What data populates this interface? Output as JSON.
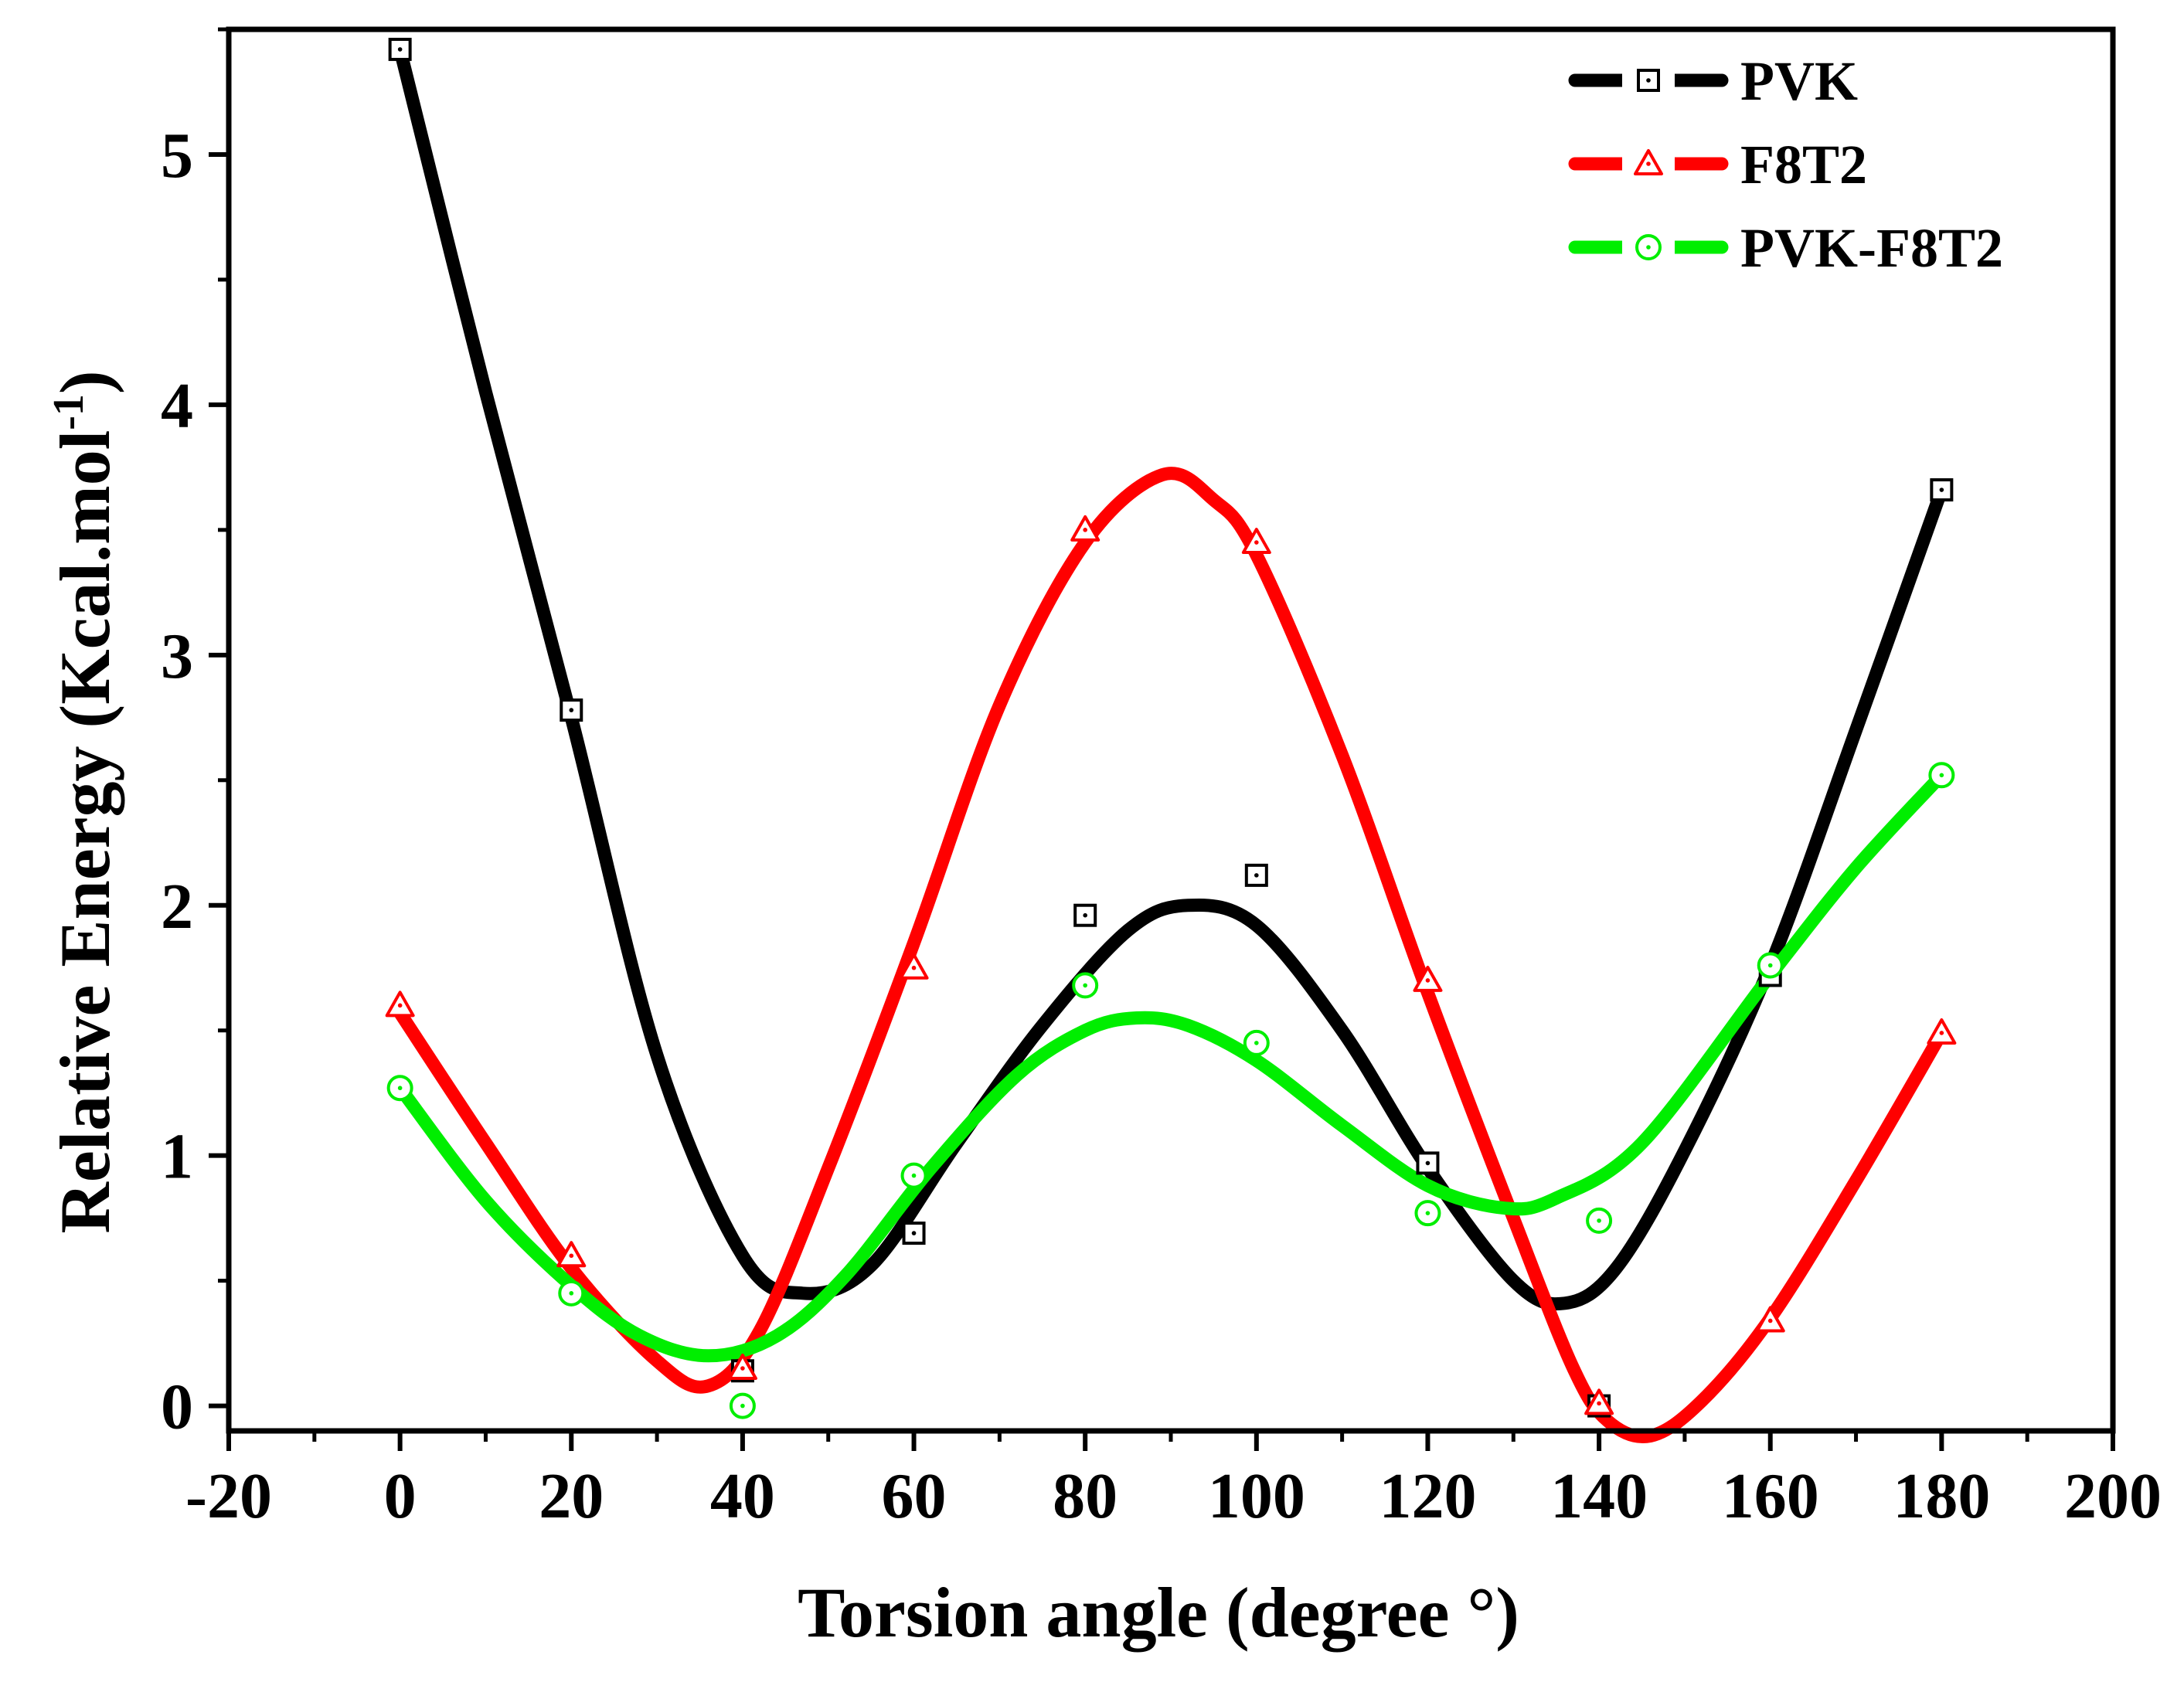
{
  "chart_data": {
    "type": "line",
    "title": "",
    "xlabel": "Torsion angle (degree °)",
    "ylabel_main": "Relative Energy (Kcal.mol",
    "ylabel_sup": "-1",
    "ylabel_close": ")",
    "xlim": [
      -20,
      200
    ],
    "ylim": [
      -0.1,
      5.5
    ],
    "xticks": [
      -20,
      0,
      20,
      40,
      60,
      80,
      100,
      120,
      140,
      160,
      180,
      200
    ],
    "xtick_labels": [
      "-20",
      "0",
      "20",
      "40",
      "60",
      "80",
      "100",
      "120",
      "140",
      "160",
      "180",
      "200"
    ],
    "yticks": [
      0,
      1,
      2,
      3,
      4,
      5
    ],
    "ytick_labels": [
      "0",
      "1",
      "2",
      "3",
      "4",
      "5"
    ],
    "x": [
      0,
      20,
      40,
      60,
      80,
      100,
      120,
      140,
      160,
      180
    ],
    "legend_position": "top-right",
    "series": [
      {
        "name": "PVK",
        "color": "#000000",
        "marker": "square",
        "values": [
          5.42,
          2.78,
          0.14,
          0.69,
          1.96,
          2.12,
          0.97,
          0.0,
          1.72,
          3.66
        ],
        "smooth": [
          [
            0,
            5.42
          ],
          [
            10,
            4.05
          ],
          [
            20,
            2.75
          ],
          [
            30,
            1.4
          ],
          [
            40,
            0.6
          ],
          [
            47,
            0.45
          ],
          [
            55,
            0.56
          ],
          [
            65,
            1.05
          ],
          [
            75,
            1.52
          ],
          [
            85,
            1.9
          ],
          [
            92,
            2.0
          ],
          [
            100,
            1.92
          ],
          [
            110,
            1.5
          ],
          [
            120,
            0.95
          ],
          [
            130,
            0.5
          ],
          [
            136,
            0.41
          ],
          [
            142,
            0.55
          ],
          [
            150,
            1.02
          ],
          [
            160,
            1.76
          ],
          [
            170,
            2.7
          ],
          [
            180,
            3.66
          ]
        ]
      },
      {
        "name": "F8T2",
        "color": "#ff0000",
        "marker": "triangle",
        "values": [
          1.6,
          0.6,
          0.15,
          1.75,
          3.5,
          3.45,
          1.7,
          0.01,
          0.34,
          1.49
        ],
        "smooth": [
          [
            0,
            1.57
          ],
          [
            10,
            1.05
          ],
          [
            20,
            0.55
          ],
          [
            30,
            0.18
          ],
          [
            36,
            0.08
          ],
          [
            42,
            0.3
          ],
          [
            50,
            0.95
          ],
          [
            60,
            1.85
          ],
          [
            70,
            2.8
          ],
          [
            80,
            3.45
          ],
          [
            89,
            3.72
          ],
          [
            95,
            3.62
          ],
          [
            100,
            3.4
          ],
          [
            110,
            2.6
          ],
          [
            120,
            1.65
          ],
          [
            130,
            0.75
          ],
          [
            137,
            0.15
          ],
          [
            141,
            -0.06
          ],
          [
            146,
            -0.12
          ],
          [
            152,
            0.02
          ],
          [
            160,
            0.35
          ],
          [
            170,
            0.9
          ],
          [
            180,
            1.49
          ]
        ]
      },
      {
        "name": "PVK-F8T2",
        "color": "#00ee00",
        "marker": "circle",
        "values": [
          1.27,
          0.45,
          0.0,
          0.92,
          1.68,
          1.45,
          0.77,
          0.74,
          1.76,
          2.52
        ],
        "smooth": [
          [
            0,
            1.27
          ],
          [
            10,
            0.82
          ],
          [
            20,
            0.48
          ],
          [
            28,
            0.28
          ],
          [
            36,
            0.2
          ],
          [
            44,
            0.28
          ],
          [
            52,
            0.52
          ],
          [
            62,
            0.95
          ],
          [
            72,
            1.32
          ],
          [
            80,
            1.5
          ],
          [
            86,
            1.55
          ],
          [
            92,
            1.52
          ],
          [
            100,
            1.38
          ],
          [
            110,
            1.12
          ],
          [
            120,
            0.88
          ],
          [
            129,
            0.79
          ],
          [
            135,
            0.83
          ],
          [
            145,
            1.05
          ],
          [
            160,
            1.72
          ],
          [
            170,
            2.15
          ],
          [
            180,
            2.52
          ]
        ]
      }
    ]
  }
}
